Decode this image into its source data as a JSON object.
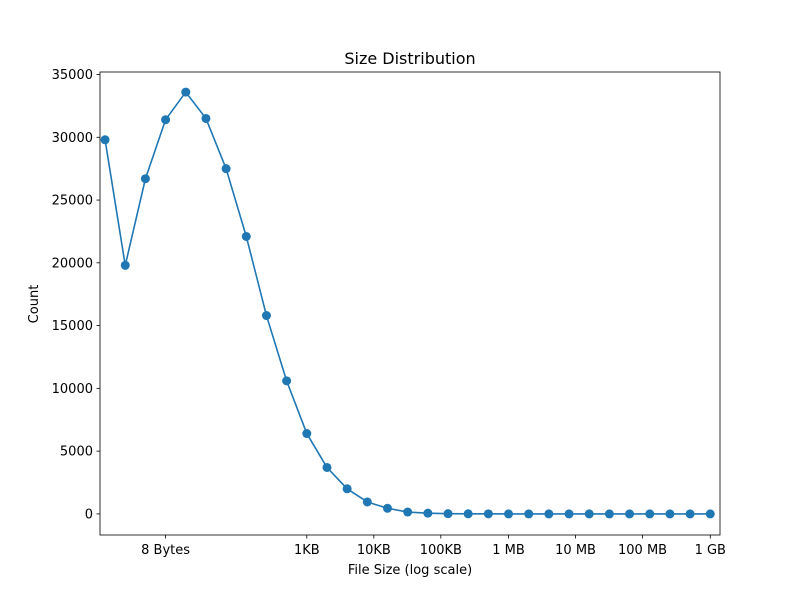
{
  "chart_data": {
    "type": "line",
    "title": "Size Distribution",
    "xlabel": "File Size (log scale)",
    "ylabel": "Count",
    "x_scale": "log2",
    "x_unit": "bytes",
    "xlim": [
      0.84,
      1500000000.0
    ],
    "ylim": [
      -1680,
      35200
    ],
    "grid": false,
    "legend": "none",
    "marker": "circle",
    "color": "#1f77b4",
    "x_ticks": [
      {
        "value": 8,
        "label": "8 Bytes"
      },
      {
        "value": 1024,
        "label": "1KB"
      },
      {
        "value": 10240,
        "label": "10KB"
      },
      {
        "value": 102400,
        "label": "100KB"
      },
      {
        "value": 1048576,
        "label": "1 MB"
      },
      {
        "value": 10485760,
        "label": "10 MB"
      },
      {
        "value": 104857600,
        "label": "100 MB"
      },
      {
        "value": 1073741824,
        "label": "1 GB"
      }
    ],
    "y_ticks": [
      0,
      5000,
      10000,
      15000,
      20000,
      25000,
      30000,
      35000
    ],
    "series": [
      {
        "x": [
          1,
          2,
          4,
          8,
          16,
          32,
          64,
          128,
          256,
          512,
          1024,
          2048,
          4096,
          8192,
          16384,
          32768,
          65536,
          131072,
          262144,
          524288,
          1048576,
          2097152,
          4194304,
          8388608,
          16777216,
          33554432,
          67108864,
          134217728,
          268435456,
          536870912,
          1073741824
        ],
        "values": [
          29800,
          19800,
          26700,
          31400,
          33600,
          31500,
          27500,
          22100,
          15800,
          10600,
          6400,
          3700,
          2000,
          950,
          450,
          150,
          60,
          20,
          10,
          5,
          0,
          0,
          0,
          0,
          0,
          0,
          0,
          0,
          0,
          0,
          0
        ]
      }
    ]
  }
}
